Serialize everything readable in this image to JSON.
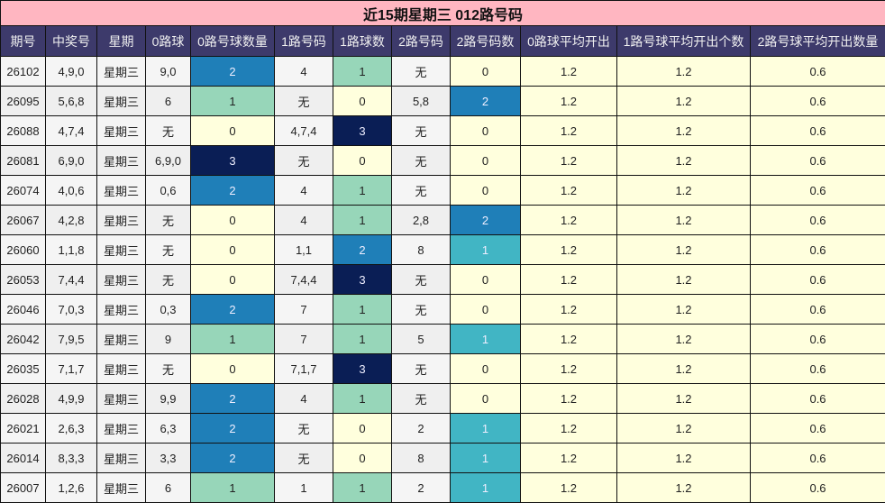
{
  "title": "近15期星期三 012路号码",
  "headers": [
    "期号",
    "中奖号",
    "星期",
    "0路球",
    "0路号球数量",
    "1路号码",
    "1路球数",
    "2路号码",
    "2路号码数",
    "0路球平均开出",
    "1路号球平均开出个数",
    "2路号球平均开出数量"
  ],
  "colors": {
    "title_bg": "#ffb6c1",
    "header_bg": "#3d3a6b",
    "count_0": "#ffffdd",
    "count_1": "#97d6b9",
    "count_2": "#1f7fb8",
    "count_3": "#0a1e55",
    "count_1_col2": "#41b5c4"
  },
  "rows": [
    {
      "issue": "26102",
      "numbers": "4,9,0",
      "weekday": "星期三",
      "r0": "9,0",
      "r0n": "2",
      "r1": "4",
      "r1n": "1",
      "r2": "无",
      "r2n": "0",
      "avg0": "1.2",
      "avg1": "1.2",
      "avg2": "0.6"
    },
    {
      "issue": "26095",
      "numbers": "5,6,8",
      "weekday": "星期三",
      "r0": "6",
      "r0n": "1",
      "r1": "无",
      "r1n": "0",
      "r2": "5,8",
      "r2n": "2",
      "avg0": "1.2",
      "avg1": "1.2",
      "avg2": "0.6"
    },
    {
      "issue": "26088",
      "numbers": "4,7,4",
      "weekday": "星期三",
      "r0": "无",
      "r0n": "0",
      "r1": "4,7,4",
      "r1n": "3",
      "r2": "无",
      "r2n": "0",
      "avg0": "1.2",
      "avg1": "1.2",
      "avg2": "0.6"
    },
    {
      "issue": "26081",
      "numbers": "6,9,0",
      "weekday": "星期三",
      "r0": "6,9,0",
      "r0n": "3",
      "r1": "无",
      "r1n": "0",
      "r2": "无",
      "r2n": "0",
      "avg0": "1.2",
      "avg1": "1.2",
      "avg2": "0.6"
    },
    {
      "issue": "26074",
      "numbers": "4,0,6",
      "weekday": "星期三",
      "r0": "0,6",
      "r0n": "2",
      "r1": "4",
      "r1n": "1",
      "r2": "无",
      "r2n": "0",
      "avg0": "1.2",
      "avg1": "1.2",
      "avg2": "0.6"
    },
    {
      "issue": "26067",
      "numbers": "4,2,8",
      "weekday": "星期三",
      "r0": "无",
      "r0n": "0",
      "r1": "4",
      "r1n": "1",
      "r2": "2,8",
      "r2n": "2",
      "avg0": "1.2",
      "avg1": "1.2",
      "avg2": "0.6"
    },
    {
      "issue": "26060",
      "numbers": "1,1,8",
      "weekday": "星期三",
      "r0": "无",
      "r0n": "0",
      "r1": "1,1",
      "r1n": "2",
      "r2": "8",
      "r2n": "1",
      "avg0": "1.2",
      "avg1": "1.2",
      "avg2": "0.6"
    },
    {
      "issue": "26053",
      "numbers": "7,4,4",
      "weekday": "星期三",
      "r0": "无",
      "r0n": "0",
      "r1": "7,4,4",
      "r1n": "3",
      "r2": "无",
      "r2n": "0",
      "avg0": "1.2",
      "avg1": "1.2",
      "avg2": "0.6"
    },
    {
      "issue": "26046",
      "numbers": "7,0,3",
      "weekday": "星期三",
      "r0": "0,3",
      "r0n": "2",
      "r1": "7",
      "r1n": "1",
      "r2": "无",
      "r2n": "0",
      "avg0": "1.2",
      "avg1": "1.2",
      "avg2": "0.6"
    },
    {
      "issue": "26042",
      "numbers": "7,9,5",
      "weekday": "星期三",
      "r0": "9",
      "r0n": "1",
      "r1": "7",
      "r1n": "1",
      "r2": "5",
      "r2n": "1",
      "avg0": "1.2",
      "avg1": "1.2",
      "avg2": "0.6"
    },
    {
      "issue": "26035",
      "numbers": "7,1,7",
      "weekday": "星期三",
      "r0": "无",
      "r0n": "0",
      "r1": "7,1,7",
      "r1n": "3",
      "r2": "无",
      "r2n": "0",
      "avg0": "1.2",
      "avg1": "1.2",
      "avg2": "0.6"
    },
    {
      "issue": "26028",
      "numbers": "4,9,9",
      "weekday": "星期三",
      "r0": "9,9",
      "r0n": "2",
      "r1": "4",
      "r1n": "1",
      "r2": "无",
      "r2n": "0",
      "avg0": "1.2",
      "avg1": "1.2",
      "avg2": "0.6"
    },
    {
      "issue": "26021",
      "numbers": "2,6,3",
      "weekday": "星期三",
      "r0": "6,3",
      "r0n": "2",
      "r1": "无",
      "r1n": "0",
      "r2": "2",
      "r2n": "1",
      "avg0": "1.2",
      "avg1": "1.2",
      "avg2": "0.6"
    },
    {
      "issue": "26014",
      "numbers": "8,3,3",
      "weekday": "星期三",
      "r0": "3,3",
      "r0n": "2",
      "r1": "无",
      "r1n": "0",
      "r2": "8",
      "r2n": "1",
      "avg0": "1.2",
      "avg1": "1.2",
      "avg2": "0.6"
    },
    {
      "issue": "26007",
      "numbers": "1,2,6",
      "weekday": "星期三",
      "r0": "6",
      "r0n": "1",
      "r1": "1",
      "r1n": "1",
      "r2": "2",
      "r2n": "1",
      "avg0": "1.2",
      "avg1": "1.2",
      "avg2": "0.6"
    }
  ]
}
